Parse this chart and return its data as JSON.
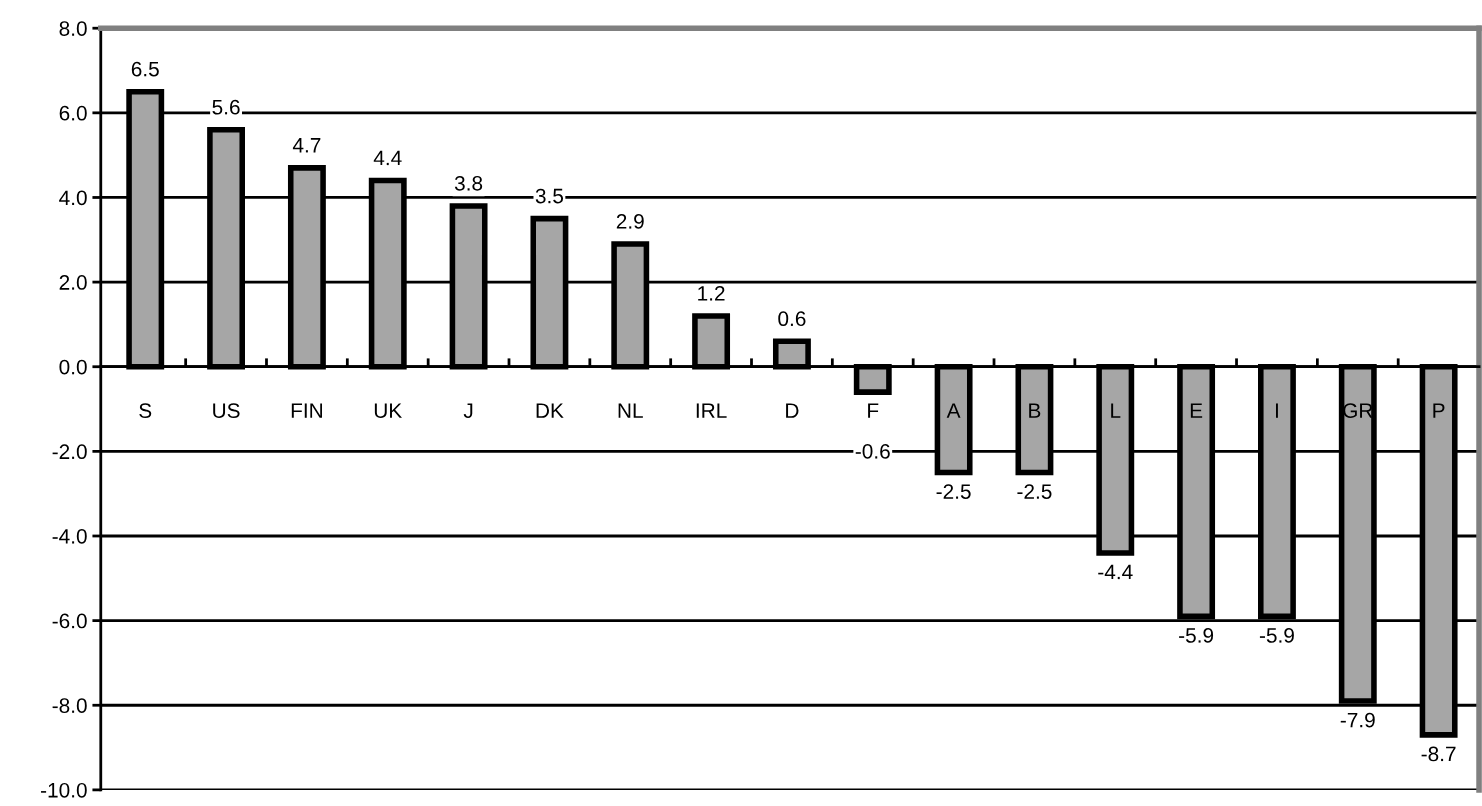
{
  "chart_data": {
    "type": "bar",
    "categories": [
      "S",
      "US",
      "FIN",
      "UK",
      "J",
      "DK",
      "NL",
      "IRL",
      "D",
      "F",
      "A",
      "B",
      "L",
      "E",
      "I",
      "GR",
      "P"
    ],
    "values": [
      6.5,
      5.6,
      4.7,
      4.4,
      3.8,
      3.5,
      2.9,
      1.2,
      0.6,
      -0.6,
      -2.5,
      -2.5,
      -4.4,
      -5.9,
      -5.9,
      -7.9,
      -8.7
    ],
    "color": "#a6a6a6",
    "ylim": [
      -10,
      8
    ],
    "yticks": [
      {
        "value": -10,
        "label": "-10.0"
      },
      {
        "value": -8,
        "label": "-8.0"
      },
      {
        "value": -6,
        "label": "-6.0"
      },
      {
        "value": -4,
        "label": "-4.0"
      },
      {
        "value": -2,
        "label": "-2.0"
      },
      {
        "value": 0,
        "label": "0.0"
      },
      {
        "value": 2,
        "label": "2.0"
      },
      {
        "value": 4,
        "label": "4.0"
      },
      {
        "value": 6,
        "label": "6.0"
      },
      {
        "value": 8,
        "label": "8.0"
      }
    ],
    "grid": "y",
    "data_labels": true,
    "legend": false
  }
}
